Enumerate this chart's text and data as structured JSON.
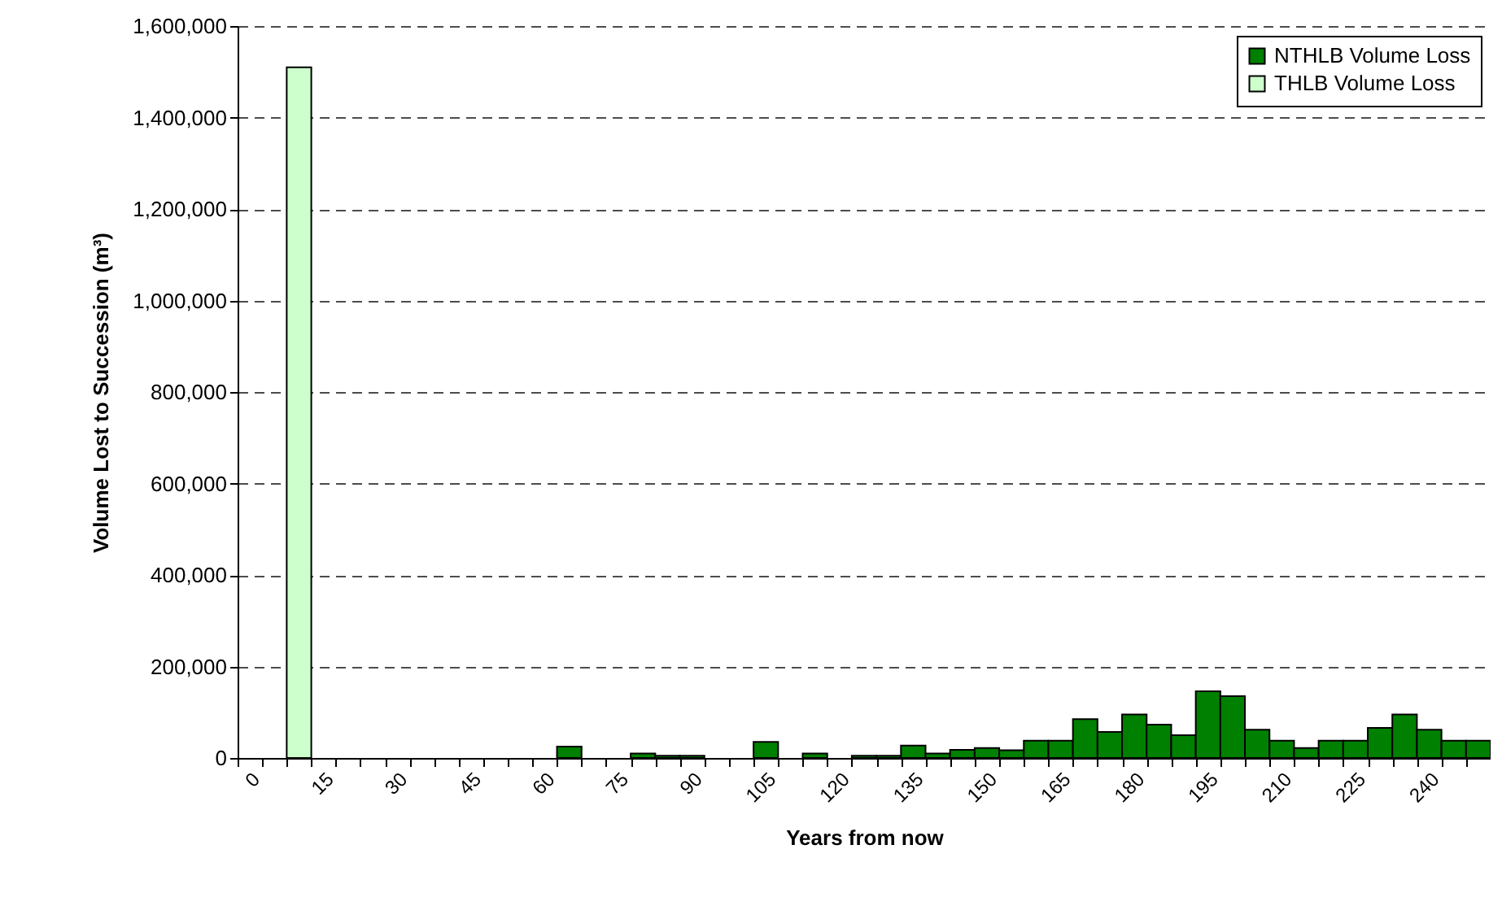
{
  "chart_data": {
    "type": "bar",
    "xlabel": "Years from now",
    "ylabel": "Volume Lost to Succession (m³)",
    "categories": [
      "0",
      null,
      null,
      "15",
      null,
      null,
      "30",
      null,
      null,
      "45",
      null,
      null,
      "60",
      null,
      null,
      "75",
      null,
      null,
      "90",
      null,
      null,
      "105",
      null,
      null,
      "120",
      null,
      null,
      "135",
      null,
      null,
      "150",
      null,
      null,
      "165",
      null,
      null,
      "180",
      null,
      null,
      "195",
      null,
      null,
      "210",
      null,
      null,
      "225",
      null,
      null,
      "240",
      null,
      null
    ],
    "series": [
      {
        "name": "NTHLB Volume Loss",
        "color": "#008000",
        "values": [
          null,
          null,
          null,
          null,
          null,
          null,
          null,
          null,
          null,
          null,
          null,
          null,
          null,
          25000,
          null,
          null,
          10000,
          5000,
          5000,
          null,
          null,
          35000,
          null,
          10000,
          null,
          5000,
          5000,
          27000,
          10000,
          18000,
          22000,
          17000,
          38000,
          38000,
          85000,
          57000,
          95000,
          73000,
          50000,
          146000,
          135000,
          62000,
          38000,
          22000,
          38000,
          38000,
          66000,
          95000,
          62000,
          38000,
          38000
        ]
      },
      {
        "name": "THLB Volume Loss",
        "color": "#ccffcc",
        "values": [
          null,
          null,
          1510000,
          null,
          null,
          null,
          null,
          null,
          null,
          null,
          null,
          null,
          null,
          null,
          null,
          null,
          null,
          null,
          null,
          null,
          null,
          null,
          null,
          null,
          null,
          null,
          null,
          null,
          null,
          null,
          null,
          null,
          null,
          null,
          null,
          null,
          null,
          null,
          null,
          null,
          null,
          null,
          null,
          null,
          null,
          null,
          null,
          null,
          null,
          null,
          null
        ]
      }
    ],
    "ylim": [
      0,
      1600000
    ],
    "yticks": [
      {
        "value": 0,
        "label": "0"
      },
      {
        "value": 200000,
        "label": "200,000"
      },
      {
        "value": 400000,
        "label": "400,000"
      },
      {
        "value": 600000,
        "label": "600,000"
      },
      {
        "value": 800000,
        "label": "800,000"
      },
      {
        "value": 1000000,
        "label": "1,000,000"
      },
      {
        "value": 1200000,
        "label": "1,200,000"
      },
      {
        "value": 1400000,
        "label": "1,400,000"
      },
      {
        "value": 1600000,
        "label": "1,600,000"
      }
    ],
    "grid": "y",
    "legend": "top right"
  }
}
